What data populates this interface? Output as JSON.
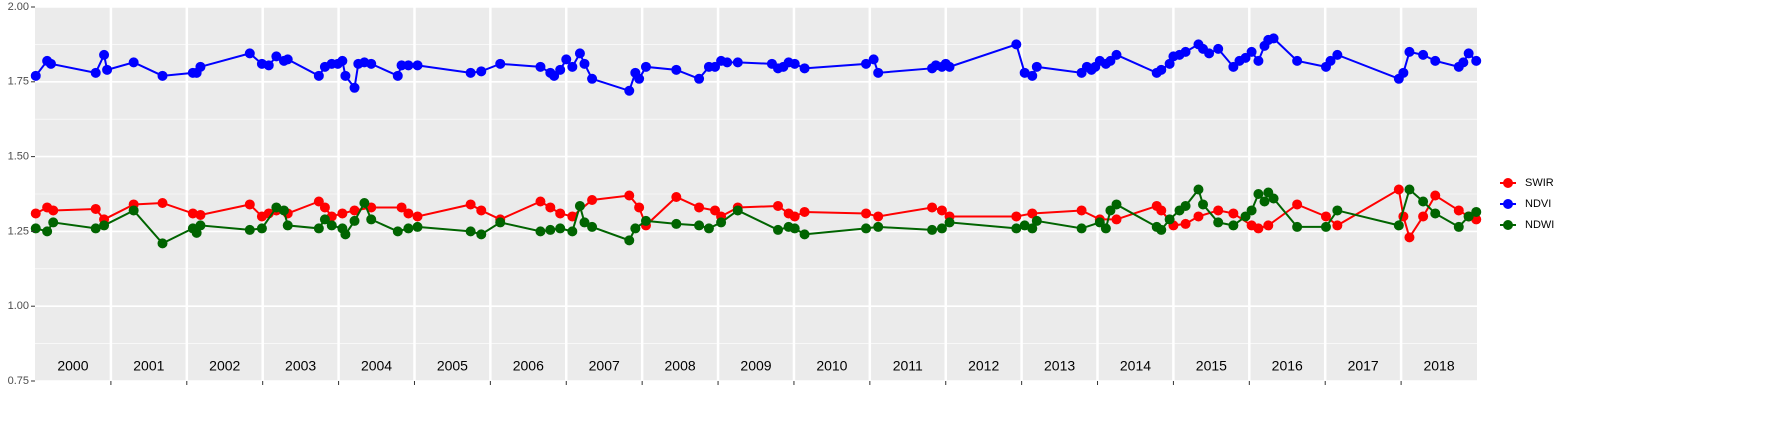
{
  "chart_data": {
    "type": "line",
    "xlim": [
      2000,
      2019
    ],
    "ylim": [
      0.75,
      2
    ],
    "yticks": [
      {
        "value": 0.75,
        "label": "0.75"
      },
      {
        "value": 1,
        "label": "1.00"
      },
      {
        "value": 1.25,
        "label": "1.25"
      },
      {
        "value": 1.5,
        "label": "1.50"
      },
      {
        "value": 1.75,
        "label": "1.75"
      },
      {
        "value": 2,
        "label": "2.00"
      }
    ],
    "xticks": [
      2001,
      2002,
      2003,
      2004,
      2005,
      2006,
      2007,
      2008,
      2009,
      2010,
      2011,
      2012,
      2013,
      2014,
      2015,
      2016,
      2017,
      2018
    ],
    "year_labels": [
      2000,
      2001,
      2002,
      2003,
      2004,
      2005,
      2006,
      2007,
      2008,
      2009,
      2010,
      2011,
      2012,
      2013,
      2014,
      2015,
      2016,
      2017,
      2018
    ],
    "grid": true,
    "series": [
      {
        "name": "SWIR",
        "color": "#ff0000",
        "x": [
          2000.01,
          2000.16,
          2000.24,
          2000.8,
          2000.91,
          2001.3,
          2001.68,
          2002.08,
          2002.18,
          2002.83,
          2002.99,
          2003.08,
          2003.18,
          2003.33,
          2003.74,
          2003.82,
          2003.91,
          2004.05,
          2004.21,
          2004.43,
          2004.83,
          2004.92,
          2005.04,
          2005.74,
          2005.88,
          2006.13,
          2006.66,
          2006.79,
          2006.92,
          2007.08,
          2007.34,
          2007.83,
          2007.96,
          2008.05,
          2008.45,
          2008.75,
          2008.96,
          2009.04,
          2009.26,
          2009.79,
          2009.93,
          2010.01,
          2010.14,
          2010.95,
          2011.11,
          2011.82,
          2011.95,
          2012.05,
          2012.93,
          2013.14,
          2013.79,
          2014.03,
          2014.25,
          2014.78,
          2014.84,
          2015.0,
          2015.16,
          2015.33,
          2015.59,
          2015.79,
          2016.03,
          2016.12,
          2016.25,
          2016.63,
          2017.01,
          2017.16,
          2017.97,
          2018.03,
          2018.11,
          2018.29,
          2018.45,
          2018.76,
          2018.89,
          2018.99
        ],
        "values": [
          1.31,
          1.33,
          1.32,
          1.325,
          1.29,
          1.34,
          1.345,
          1.31,
          1.305,
          1.34,
          1.3,
          1.31,
          1.32,
          1.31,
          1.35,
          1.33,
          1.3,
          1.31,
          1.32,
          1.33,
          1.33,
          1.31,
          1.3,
          1.34,
          1.32,
          1.29,
          1.35,
          1.33,
          1.31,
          1.3,
          1.355,
          1.37,
          1.33,
          1.27,
          1.365,
          1.33,
          1.32,
          1.3,
          1.33,
          1.335,
          1.31,
          1.3,
          1.315,
          1.31,
          1.3,
          1.33,
          1.32,
          1.3,
          1.3,
          1.31,
          1.32,
          1.29,
          1.29,
          1.335,
          1.32,
          1.27,
          1.275,
          1.3,
          1.32,
          1.31,
          1.27,
          1.26,
          1.27,
          1.34,
          1.3,
          1.27,
          1.39,
          1.3,
          1.23,
          1.3,
          1.37,
          1.32,
          1.3,
          1.29
        ]
      },
      {
        "name": "NDVI",
        "color": "#0000ff",
        "x": [
          2000.01,
          2000.16,
          2000.21,
          2000.8,
          2000.91,
          2000.95,
          2001.3,
          2001.68,
          2002.08,
          2002.13,
          2002.18,
          2002.83,
          2002.99,
          2003.08,
          2003.18,
          2003.28,
          2003.33,
          2003.74,
          2003.82,
          2003.91,
          2003.99,
          2004.05,
          2004.09,
          2004.21,
          2004.26,
          2004.34,
          2004.43,
          2004.78,
          2004.83,
          2004.92,
          2005.04,
          2005.74,
          2005.88,
          2006.13,
          2006.66,
          2006.79,
          2006.84,
          2006.92,
          2007.0,
          2007.08,
          2007.18,
          2007.24,
          2007.34,
          2007.83,
          2007.91,
          2007.96,
          2008.05,
          2008.45,
          2008.75,
          2008.88,
          2008.96,
          2009.04,
          2009.12,
          2009.26,
          2009.71,
          2009.79,
          2009.86,
          2009.93,
          2010.01,
          2010.14,
          2010.95,
          2011.05,
          2011.11,
          2011.82,
          2011.87,
          2011.95,
          2012.0,
          2012.05,
          2012.93,
          2013.04,
          2013.14,
          2013.2,
          2013.79,
          2013.86,
          2013.92,
          2013.97,
          2014.03,
          2014.11,
          2014.17,
          2014.25,
          2014.78,
          2014.84,
          2014.95,
          2015.0,
          2015.08,
          2015.16,
          2015.33,
          2015.39,
          2015.47,
          2015.59,
          2015.79,
          2015.87,
          2015.95,
          2016.03,
          2016.12,
          2016.2,
          2016.25,
          2016.32,
          2016.63,
          2017.01,
          2017.07,
          2017.16,
          2017.97,
          2018.03,
          2018.11,
          2018.29,
          2018.45,
          2018.76,
          2018.82,
          2018.89,
          2018.99
        ],
        "values": [
          1.77,
          1.82,
          1.81,
          1.78,
          1.84,
          1.79,
          1.815,
          1.77,
          1.78,
          1.78,
          1.8,
          1.845,
          1.81,
          1.805,
          1.835,
          1.82,
          1.825,
          1.77,
          1.8,
          1.81,
          1.81,
          1.82,
          1.77,
          1.73,
          1.81,
          1.815,
          1.81,
          1.77,
          1.805,
          1.805,
          1.805,
          1.78,
          1.785,
          1.81,
          1.8,
          1.78,
          1.77,
          1.79,
          1.825,
          1.8,
          1.845,
          1.81,
          1.76,
          1.72,
          1.78,
          1.76,
          1.8,
          1.79,
          1.76,
          1.8,
          1.8,
          1.82,
          1.815,
          1.815,
          1.81,
          1.795,
          1.8,
          1.815,
          1.81,
          1.795,
          1.81,
          1.825,
          1.78,
          1.795,
          1.805,
          1.8,
          1.81,
          1.8,
          1.875,
          1.78,
          1.77,
          1.8,
          1.78,
          1.8,
          1.79,
          1.8,
          1.82,
          1.81,
          1.82,
          1.84,
          1.78,
          1.79,
          1.81,
          1.835,
          1.84,
          1.85,
          1.875,
          1.86,
          1.845,
          1.86,
          1.8,
          1.82,
          1.83,
          1.85,
          1.82,
          1.87,
          1.89,
          1.895,
          1.82,
          1.8,
          1.82,
          1.84,
          1.76,
          1.78,
          1.85,
          1.84,
          1.82,
          1.8,
          1.815,
          1.845,
          1.82
        ]
      },
      {
        "name": "NDWI",
        "color": "#006400",
        "x": [
          2000.01,
          2000.16,
          2000.24,
          2000.8,
          2000.91,
          2001.3,
          2001.68,
          2002.08,
          2002.13,
          2002.18,
          2002.83,
          2002.99,
          2003.18,
          2003.28,
          2003.33,
          2003.74,
          2003.82,
          2003.91,
          2004.05,
          2004.09,
          2004.21,
          2004.34,
          2004.43,
          2004.78,
          2004.92,
          2005.04,
          2005.74,
          2005.88,
          2006.13,
          2006.66,
          2006.79,
          2006.92,
          2007.08,
          2007.18,
          2007.24,
          2007.34,
          2007.83,
          2007.91,
          2008.05,
          2008.45,
          2008.75,
          2008.88,
          2009.04,
          2009.26,
          2009.79,
          2009.93,
          2010.01,
          2010.14,
          2010.95,
          2011.11,
          2011.82,
          2011.95,
          2012.05,
          2012.93,
          2013.04,
          2013.14,
          2013.2,
          2013.79,
          2014.03,
          2014.11,
          2014.17,
          2014.25,
          2014.78,
          2014.84,
          2014.95,
          2015.08,
          2015.16,
          2015.33,
          2015.39,
          2015.59,
          2015.79,
          2015.95,
          2016.03,
          2016.12,
          2016.2,
          2016.25,
          2016.32,
          2016.63,
          2017.01,
          2017.16,
          2017.97,
          2018.11,
          2018.29,
          2018.45,
          2018.76,
          2018.89,
          2018.99
        ],
        "values": [
          1.26,
          1.25,
          1.28,
          1.26,
          1.27,
          1.32,
          1.21,
          1.26,
          1.245,
          1.27,
          1.255,
          1.26,
          1.33,
          1.32,
          1.27,
          1.26,
          1.29,
          1.27,
          1.26,
          1.24,
          1.285,
          1.345,
          1.29,
          1.25,
          1.26,
          1.265,
          1.25,
          1.24,
          1.28,
          1.25,
          1.255,
          1.26,
          1.25,
          1.335,
          1.28,
          1.265,
          1.22,
          1.26,
          1.285,
          1.275,
          1.27,
          1.26,
          1.28,
          1.32,
          1.255,
          1.265,
          1.26,
          1.24,
          1.26,
          1.265,
          1.255,
          1.26,
          1.28,
          1.26,
          1.27,
          1.26,
          1.285,
          1.26,
          1.28,
          1.26,
          1.32,
          1.34,
          1.265,
          1.255,
          1.29,
          1.32,
          1.335,
          1.39,
          1.34,
          1.28,
          1.27,
          1.3,
          1.32,
          1.375,
          1.35,
          1.38,
          1.36,
          1.265,
          1.265,
          1.32,
          1.27,
          1.39,
          1.35,
          1.31,
          1.265,
          1.3,
          1.315
        ]
      }
    ]
  }
}
